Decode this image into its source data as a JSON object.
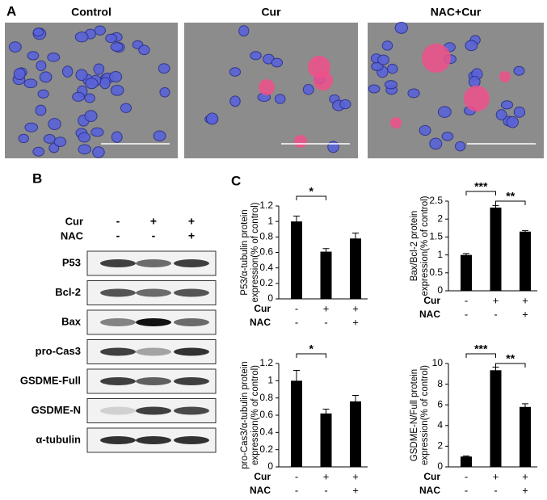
{
  "panel_labels": [
    "A",
    "B",
    "C"
  ],
  "panel_a": {
    "titles": [
      "Control",
      "Cur",
      "NAC+Cur"
    ]
  },
  "panel_b": {
    "treatments": [
      {
        "name": "Cur",
        "signs": [
          "-",
          "+",
          "+"
        ]
      },
      {
        "name": "NAC",
        "signs": [
          "-",
          "-",
          "+"
        ]
      }
    ],
    "bands": [
      "P53",
      "Bcl-2",
      "Bax",
      "pro-Cas3",
      "GSDME-Full",
      "GSDME-N",
      "α-tubulin"
    ]
  },
  "chart_data": [
    {
      "type": "bar",
      "ylabel": [
        "P53/α-tubulin protein",
        "expression(% of control)"
      ],
      "values": [
        1.0,
        0.61,
        0.78
      ],
      "errors": [
        0.07,
        0.04,
        0.07
      ],
      "color": "#000000",
      "ylim": [
        0,
        1.2
      ],
      "yticks": [
        0,
        0.2,
        0.4,
        0.6,
        0.8,
        1,
        1.2
      ],
      "treatments": [
        {
          "name": "Cur",
          "signs": [
            "-",
            "+",
            "+"
          ]
        },
        {
          "name": "NAC",
          "signs": [
            "-",
            "-",
            "+"
          ]
        }
      ],
      "brackets": [
        {
          "label": "*",
          "between": [
            0,
            1
          ]
        }
      ]
    },
    {
      "type": "bar",
      "ylabel": [
        "Bax/Bcl-2 protein",
        "expression(% of control)"
      ],
      "values": [
        1.0,
        2.32,
        1.65
      ],
      "errors": [
        0.04,
        0.06,
        0.03
      ],
      "color": "#000000",
      "ylim": [
        0,
        2.5
      ],
      "yticks": [
        0,
        0.5,
        1,
        1.5,
        2,
        2.5
      ],
      "treatments": [
        {
          "name": "Cur",
          "signs": [
            "-",
            "+",
            "+"
          ]
        },
        {
          "name": "NAC",
          "signs": [
            "-",
            "-",
            "+"
          ]
        }
      ],
      "brackets": [
        {
          "label": "***",
          "between": [
            0,
            1
          ]
        },
        {
          "label": "**",
          "between": [
            1,
            2
          ]
        }
      ]
    },
    {
      "type": "bar",
      "ylabel": [
        "pro-Cas3/α-tubulin protein",
        "expression(% of control)"
      ],
      "values": [
        1.0,
        0.62,
        0.76
      ],
      "errors": [
        0.12,
        0.05,
        0.07
      ],
      "color": "#000000",
      "ylim": [
        0,
        1.2
      ],
      "yticks": [
        0,
        0.2,
        0.4,
        0.6,
        0.8,
        1,
        1.2
      ],
      "treatments": [
        {
          "name": "Cur",
          "signs": [
            "-",
            "+",
            "+"
          ]
        },
        {
          "name": "NAC",
          "signs": [
            "-",
            "-",
            "+"
          ]
        }
      ],
      "brackets": [
        {
          "label": "*",
          "between": [
            0,
            1
          ]
        }
      ]
    },
    {
      "type": "bar",
      "ylabel": [
        "GSDME-N/Full protein",
        "expression(% of control)"
      ],
      "values": [
        1.0,
        9.35,
        5.8
      ],
      "errors": [
        0.05,
        0.3,
        0.3
      ],
      "color": "#000000",
      "ylim": [
        0,
        10
      ],
      "yticks": [
        0,
        2,
        4,
        6,
        8,
        10
      ],
      "treatments": [
        {
          "name": "Cur",
          "signs": [
            "-",
            "+",
            "+"
          ]
        },
        {
          "name": "NAC",
          "signs": [
            "-",
            "-",
            "+"
          ]
        }
      ],
      "brackets": [
        {
          "label": "***",
          "between": [
            0,
            1
          ]
        },
        {
          "label": "**",
          "between": [
            1,
            2
          ]
        }
      ]
    }
  ]
}
